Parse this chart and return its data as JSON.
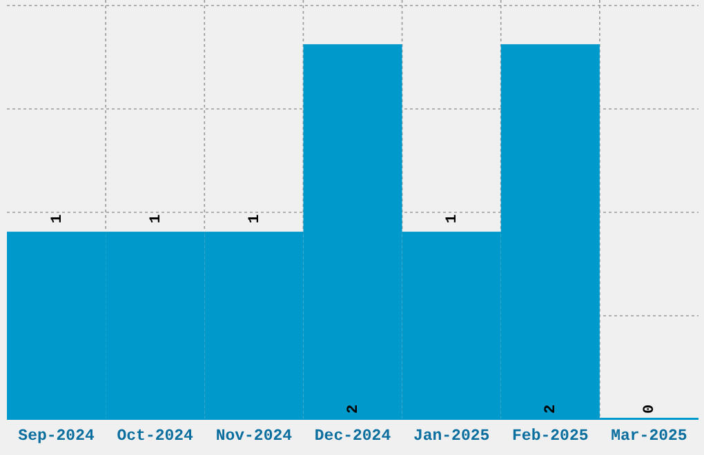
{
  "chart_data": {
    "type": "bar",
    "categories": [
      "Sep-2024",
      "Oct-2024",
      "Nov-2024",
      "Dec-2024",
      "Jan-2025",
      "Feb-2025",
      "Mar-2025"
    ],
    "values": [
      1,
      1,
      1,
      2,
      1,
      2,
      0
    ],
    "color": "#0099cc",
    "data_labels": true,
    "grid": true
  }
}
